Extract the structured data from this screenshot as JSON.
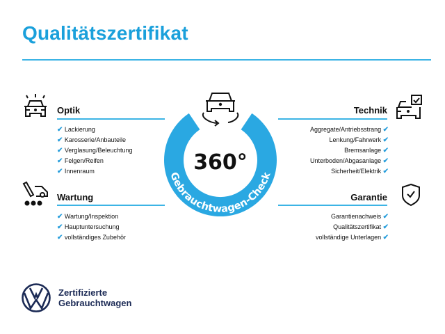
{
  "title": "Qualitätszertifikat",
  "center": {
    "badge": "360°",
    "ring_text": "Gebrauchtwagen-Check"
  },
  "sections": {
    "optik": {
      "heading": "Optik",
      "icon": "car-lights-icon",
      "items": [
        "Lackierung",
        "Karosserie/Anbauteile",
        "Verglasung/Beleuchtung",
        "Felgen/Reifen",
        "Innenraum"
      ]
    },
    "wartung": {
      "heading": "Wartung",
      "icon": "service-car-icon",
      "items": [
        "Wartung/Inspektion",
        "Hauptuntersuchung",
        "vollständiges Zubehör"
      ]
    },
    "technik": {
      "heading": "Technik",
      "icon": "car-checkbox-icon",
      "items": [
        "Aggregate/Antriebsstrang",
        "Lenkung/Fahrwerk",
        "Bremsanlage",
        "Unterboden/Abgasanlage",
        "Sicherheit/Elektrik"
      ]
    },
    "garantie": {
      "heading": "Garantie",
      "icon": "shield-check-icon",
      "items": [
        "Garantienachweis",
        "Qualitätszertifikat",
        "vollständige Unterlagen"
      ]
    }
  },
  "checkmark": "✔",
  "brand": {
    "line1": "Zertifizierte",
    "line2": "Gebrauchtwagen",
    "logo": "vw-logo"
  },
  "colors": {
    "accent": "#1aa0db",
    "ring": "#2aa8e2",
    "brand": "#1b2a55"
  }
}
